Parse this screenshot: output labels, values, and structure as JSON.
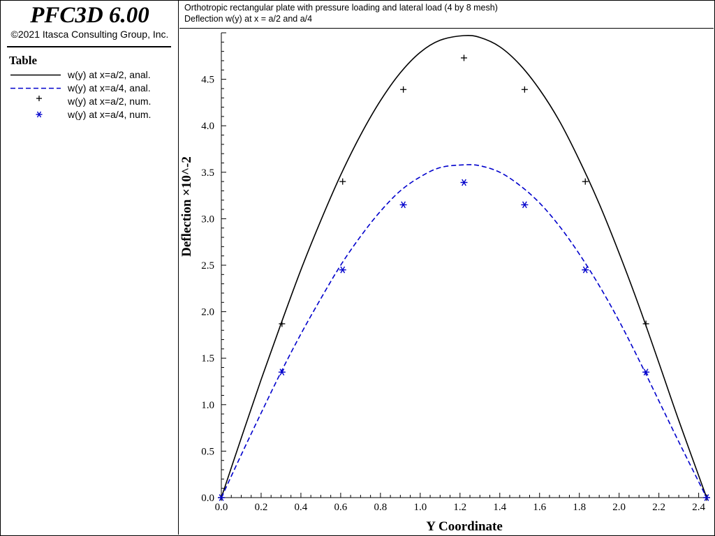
{
  "app": {
    "title": "PFC3D 6.00",
    "copyright": "©2021 Itasca Consulting Group, Inc."
  },
  "legend": {
    "heading": "Table",
    "entries": [
      {
        "label": "w(y) at x=a/2, anal.",
        "style": "solid-line",
        "color": "#000000"
      },
      {
        "label": "w(y) at x=a/4, anal.",
        "style": "dashed-line",
        "color": "#0000cc"
      },
      {
        "label": "w(y) at x=a/2, num.",
        "style": "plus-marker",
        "color": "#000000"
      },
      {
        "label": "w(y) at x=a/4, num.",
        "style": "star-marker",
        "color": "#0000cc"
      }
    ]
  },
  "chart_data": {
    "type": "line",
    "title": "Orthotropic rectangular plate with pressure loading and lateral load (4 by 8 mesh)",
    "subtitle": "Deflection w(y) at x = a/2 and a/4",
    "xlabel": "Y Coordinate",
    "ylabel": "Deflection ×10^-2",
    "xlim": [
      0,
      2.44
    ],
    "ylim": [
      0,
      5.0
    ],
    "xticks": [
      "0.0",
      "0.2",
      "0.4",
      "0.6",
      "0.8",
      "1.0",
      "1.2",
      "1.4",
      "1.6",
      "1.8",
      "2.0",
      "2.2",
      "2.4"
    ],
    "yticks": [
      "0.0",
      "0.5",
      "1.0",
      "1.5",
      "2.0",
      "2.5",
      "3.0",
      "3.5",
      "4.0",
      "4.5"
    ],
    "grid": false,
    "legend_position": "left-panel",
    "series": [
      {
        "name": "w(y) at x=a/2, anal.",
        "kind": "line",
        "style": "solid",
        "color": "#000000",
        "x": [
          0.0,
          0.1,
          0.2,
          0.3,
          0.4,
          0.5,
          0.6,
          0.7,
          0.8,
          0.9,
          1.0,
          1.1,
          1.22,
          1.3,
          1.4,
          1.5,
          1.6,
          1.7,
          1.8,
          1.9,
          2.0,
          2.1,
          2.2,
          2.3,
          2.44
        ],
        "y": [
          0.0,
          0.64,
          1.27,
          1.87,
          2.45,
          2.98,
          3.47,
          3.9,
          4.27,
          4.57,
          4.79,
          4.92,
          4.97,
          4.95,
          4.85,
          4.66,
          4.39,
          4.05,
          3.63,
          3.16,
          2.63,
          2.06,
          1.45,
          0.83,
          0.0
        ]
      },
      {
        "name": "w(y) at x=a/4, anal.",
        "kind": "line",
        "style": "dashed",
        "color": "#0000cc",
        "x": [
          0.0,
          0.1,
          0.2,
          0.3,
          0.4,
          0.5,
          0.6,
          0.7,
          0.8,
          0.9,
          1.0,
          1.1,
          1.22,
          1.3,
          1.4,
          1.5,
          1.6,
          1.7,
          1.8,
          1.9,
          2.0,
          2.1,
          2.2,
          2.3,
          2.44
        ],
        "y": [
          0.0,
          0.46,
          0.91,
          1.35,
          1.76,
          2.14,
          2.5,
          2.81,
          3.08,
          3.3,
          3.45,
          3.55,
          3.58,
          3.57,
          3.5,
          3.36,
          3.17,
          2.92,
          2.62,
          2.28,
          1.9,
          1.48,
          1.04,
          0.6,
          0.0
        ]
      },
      {
        "name": "w(y) at x=a/2, num.",
        "kind": "scatter",
        "marker": "plus",
        "color": "#000000",
        "x": [
          0.0,
          0.305,
          0.61,
          0.915,
          1.22,
          1.525,
          1.83,
          2.135,
          2.44
        ],
        "y": [
          0.0,
          1.87,
          3.4,
          4.39,
          4.73,
          4.39,
          3.4,
          1.87,
          0.0
        ]
      },
      {
        "name": "w(y) at x=a/4, num.",
        "kind": "scatter",
        "marker": "star",
        "color": "#0000cc",
        "x": [
          0.0,
          0.305,
          0.61,
          0.915,
          1.22,
          1.525,
          1.83,
          2.135,
          2.44
        ],
        "y": [
          0.0,
          1.35,
          2.45,
          3.15,
          3.39,
          3.15,
          2.45,
          1.35,
          0.0
        ]
      }
    ]
  }
}
